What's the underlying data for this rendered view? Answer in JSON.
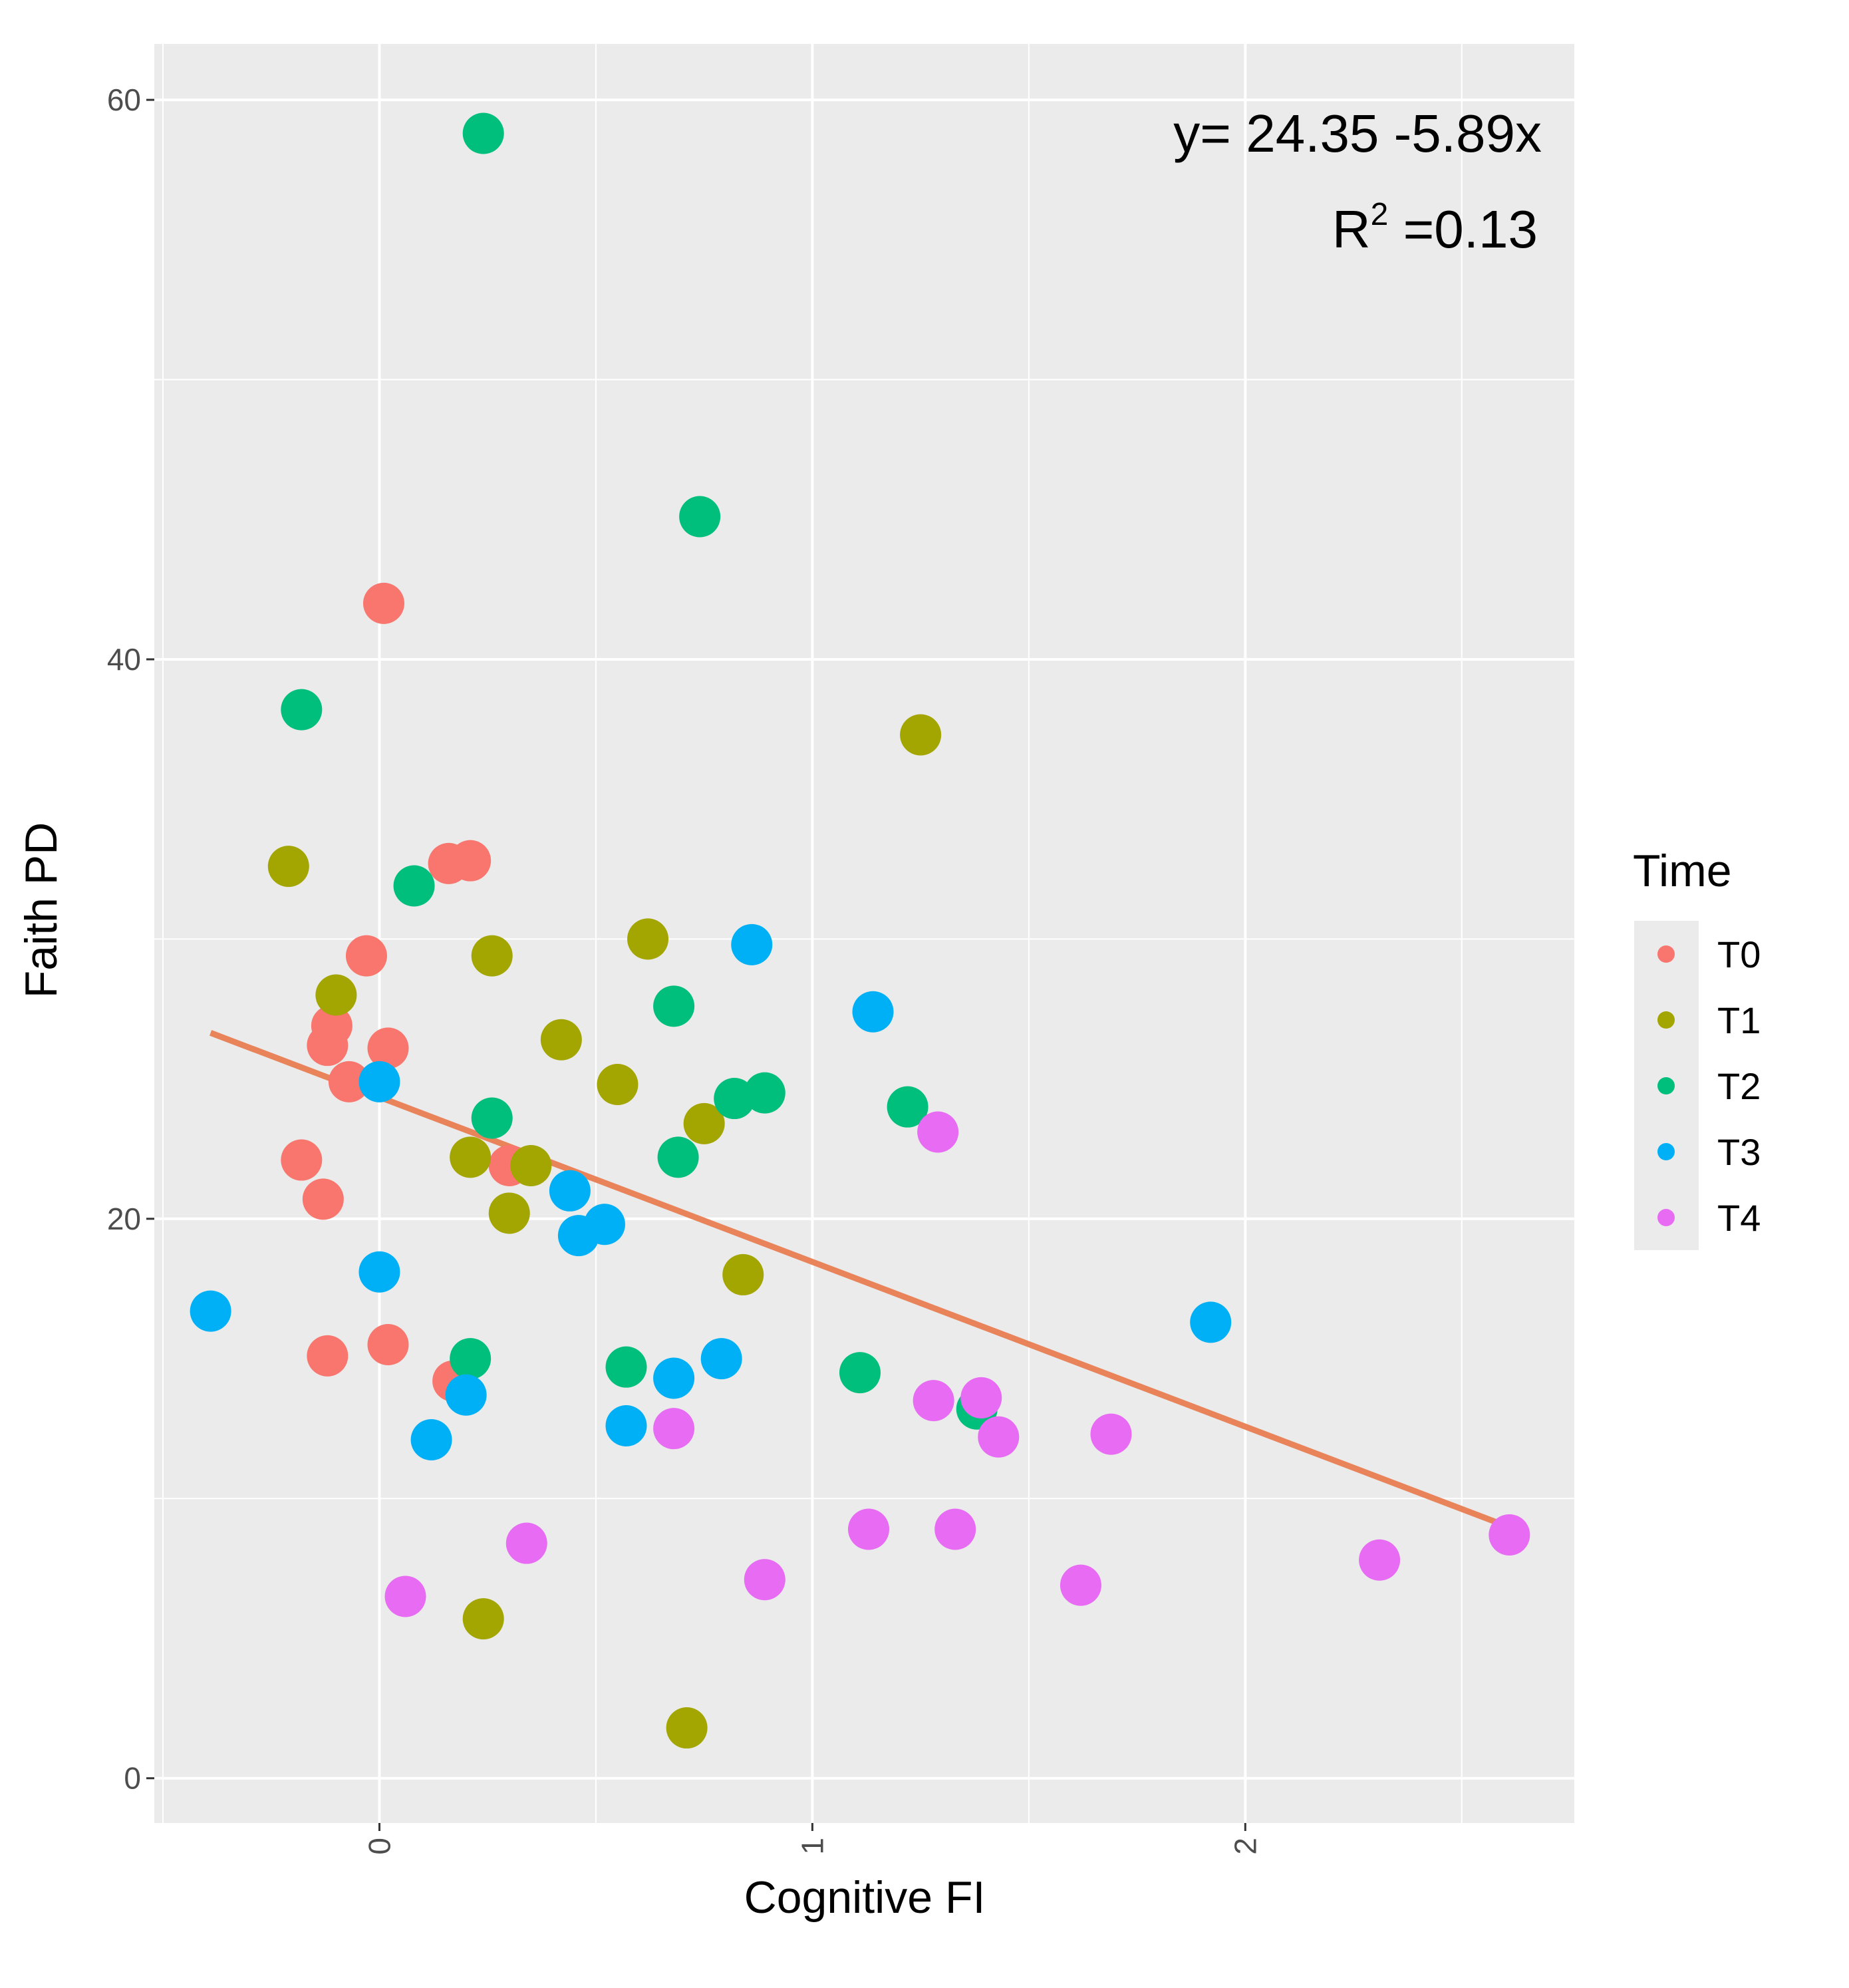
{
  "chart_data": {
    "type": "scatter",
    "title": "",
    "xlabel": "Cognitive  FI",
    "ylabel": "Faith PD",
    "xlim": [
      -0.52,
      2.76
    ],
    "ylim": [
      -1.6,
      62
    ],
    "x_ticks": [
      0,
      1,
      2
    ],
    "x_tick_labels": [
      "0",
      "1",
      "2"
    ],
    "y_ticks": [
      0,
      20,
      40,
      60
    ],
    "y_tick_labels": [
      "0",
      "20",
      "40",
      "60"
    ],
    "grid": true,
    "legend": {
      "title": "Time",
      "position": "right"
    },
    "annotation": {
      "equation": "y= 24.35 -5.89x",
      "r2_prefix": "R",
      "r2_sup": "2",
      "r2_value": " =0.13"
    },
    "fit_line": {
      "intercept": 24.35,
      "slope": -5.89,
      "x_range": [
        -0.39,
        2.6
      ],
      "color": "#E8835A"
    },
    "series": [
      {
        "name": "T0",
        "color": "#F8766D",
        "points": [
          [
            0.01,
            42.0
          ],
          [
            -0.03,
            29.4
          ],
          [
            0.16,
            32.7
          ],
          [
            0.21,
            32.8
          ],
          [
            -0.11,
            26.9
          ],
          [
            -0.12,
            26.2
          ],
          [
            0.02,
            26.1
          ],
          [
            -0.07,
            24.9
          ],
          [
            -0.18,
            22.1
          ],
          [
            -0.13,
            20.7
          ],
          [
            0.3,
            21.9
          ],
          [
            -0.12,
            15.1
          ],
          [
            0.02,
            15.5
          ],
          [
            0.17,
            14.2
          ]
        ]
      },
      {
        "name": "T1",
        "color": "#A3A500",
        "points": [
          [
            -0.21,
            32.6
          ],
          [
            -0.1,
            28.0
          ],
          [
            0.26,
            29.4
          ],
          [
            0.42,
            26.4
          ],
          [
            0.62,
            30.0
          ],
          [
            0.55,
            24.8
          ],
          [
            0.75,
            23.4
          ],
          [
            0.21,
            22.2
          ],
          [
            0.35,
            21.9
          ],
          [
            0.3,
            20.2
          ],
          [
            0.84,
            18.0
          ],
          [
            1.25,
            37.3
          ],
          [
            0.24,
            5.7
          ],
          [
            0.71,
            1.8
          ]
        ]
      },
      {
        "name": "T2",
        "color": "#00BF7D",
        "points": [
          [
            0.24,
            58.8
          ],
          [
            0.74,
            45.1
          ],
          [
            -0.18,
            38.2
          ],
          [
            0.08,
            31.9
          ],
          [
            0.68,
            27.6
          ],
          [
            0.26,
            23.6
          ],
          [
            0.82,
            24.3
          ],
          [
            0.89,
            24.5
          ],
          [
            1.22,
            24.0
          ],
          [
            0.69,
            22.2
          ],
          [
            0.21,
            15.0
          ],
          [
            0.57,
            14.7
          ],
          [
            1.11,
            14.5
          ],
          [
            1.38,
            13.2
          ]
        ]
      },
      {
        "name": "T3",
        "color": "#00B0F6",
        "points": [
          [
            0.0,
            24.9
          ],
          [
            0.86,
            29.8
          ],
          [
            1.14,
            27.4
          ],
          [
            0.44,
            21.0
          ],
          [
            0.46,
            19.4
          ],
          [
            0.52,
            19.8
          ],
          [
            0.0,
            18.1
          ],
          [
            -0.39,
            16.7
          ],
          [
            0.79,
            15.0
          ],
          [
            0.68,
            14.3
          ],
          [
            0.2,
            13.7
          ],
          [
            0.57,
            12.6
          ],
          [
            0.12,
            12.1
          ],
          [
            1.92,
            16.3
          ]
        ]
      },
      {
        "name": "T4",
        "color": "#E76BF3",
        "points": [
          [
            1.29,
            23.1
          ],
          [
            1.28,
            13.5
          ],
          [
            1.39,
            13.6
          ],
          [
            1.43,
            12.2
          ],
          [
            1.69,
            12.3
          ],
          [
            0.68,
            12.5
          ],
          [
            1.13,
            8.9
          ],
          [
            1.33,
            8.9
          ],
          [
            0.34,
            8.4
          ],
          [
            0.06,
            6.5
          ],
          [
            0.89,
            7.1
          ],
          [
            1.62,
            6.9
          ],
          [
            2.31,
            7.8
          ],
          [
            2.61,
            8.7
          ]
        ]
      }
    ]
  }
}
